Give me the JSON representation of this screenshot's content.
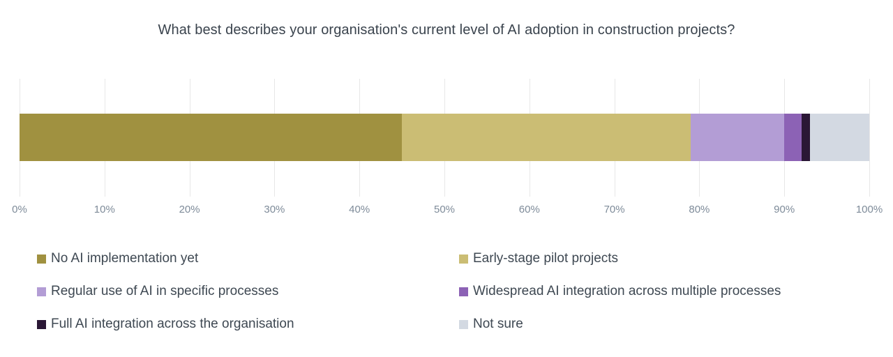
{
  "title": "What best describes your organisation's current level of AI adoption in construction projects?",
  "chart_data": {
    "type": "bar",
    "subtype": "horizontal-stacked",
    "title": "What best describes your organisation's current level of AI adoption in construction projects?",
    "categories": [
      "No AI implementation yet",
      "Early-stage pilot projects",
      "Regular use of AI in specific processes",
      "Widespread AI integration across multiple processes",
      "Full AI integration across the organisation",
      "Not sure"
    ],
    "values": [
      45,
      34,
      11,
      2,
      1,
      7
    ],
    "unit": "%",
    "colors": [
      "#a09140",
      "#cbbd74",
      "#b39dd5",
      "#8c62b5",
      "#2a1735",
      "#d3d9e2"
    ],
    "x_ticks": [
      "0%",
      "10%",
      "20%",
      "30%",
      "40%",
      "50%",
      "60%",
      "70%",
      "80%",
      "90%",
      "100%"
    ],
    "xlim": [
      0,
      100
    ],
    "xlabel": "",
    "ylabel": "",
    "grid": true,
    "legend_position": "bottom-two-columns"
  },
  "style": {
    "background": "#ffffff",
    "grid_color": "#e7e7e7",
    "title_color": "#3a434d",
    "axis_label_color": "#7e8b99",
    "legend_text_color": "#3e4852"
  }
}
